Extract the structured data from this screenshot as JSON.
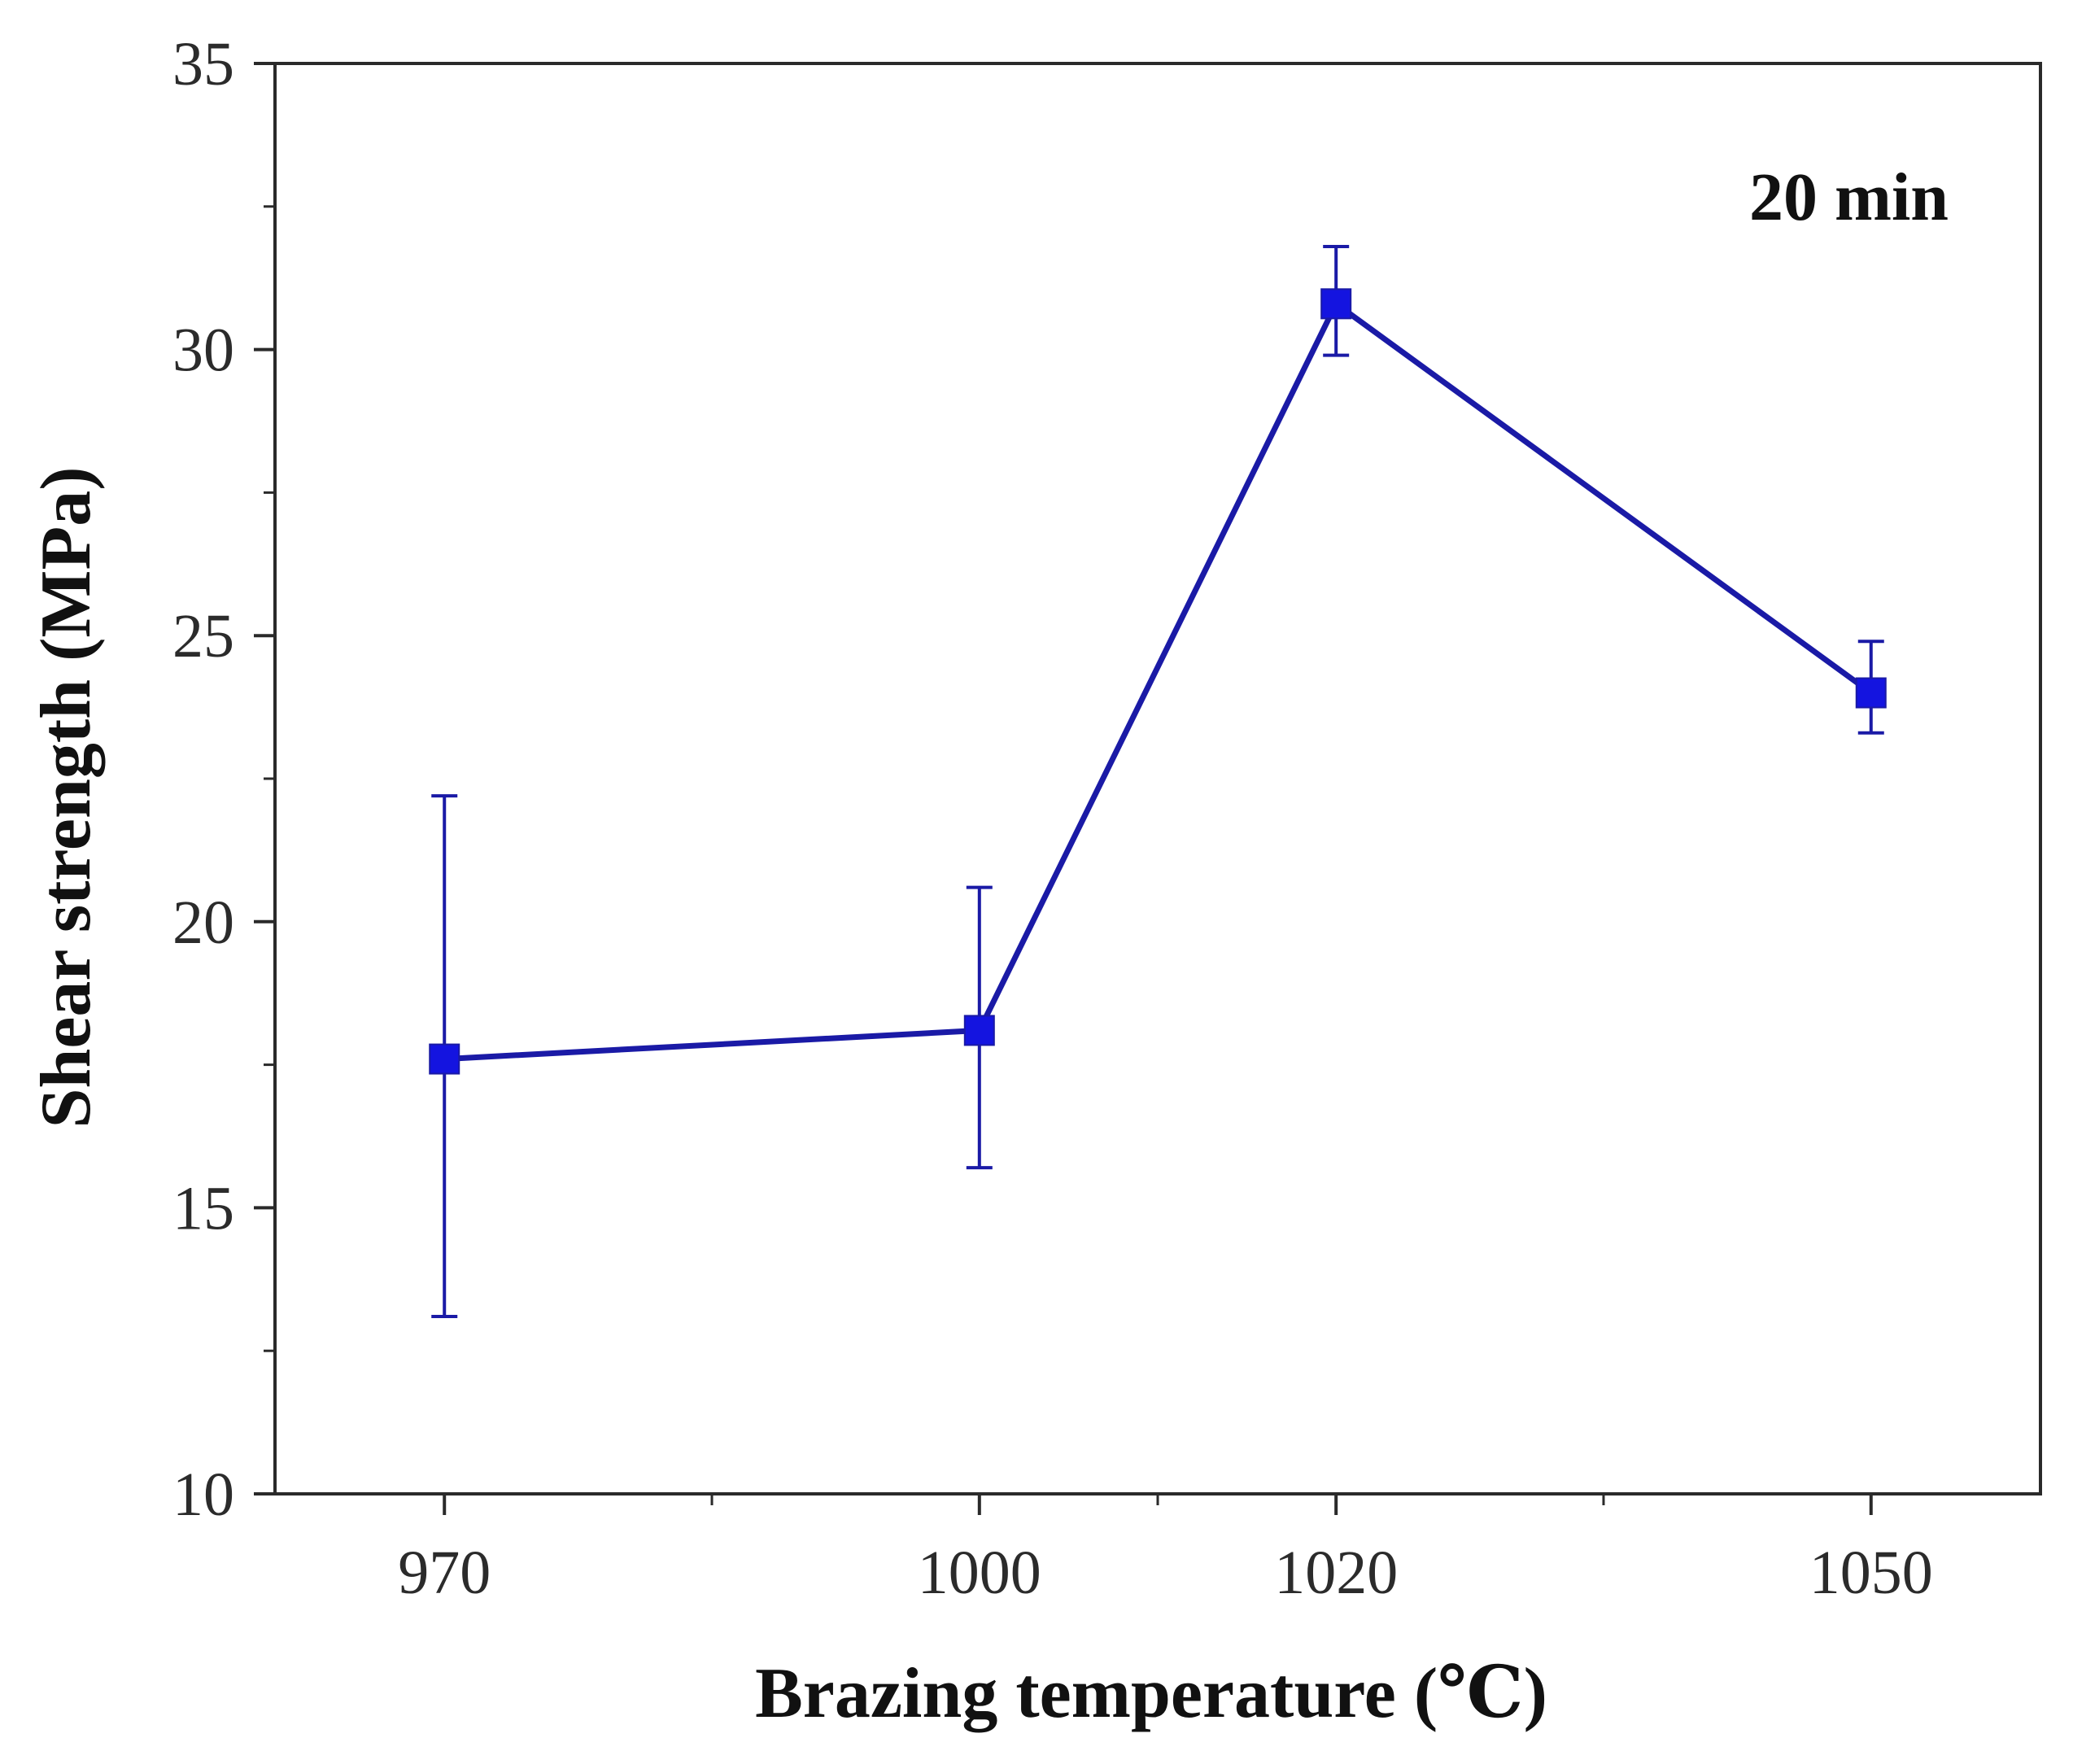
{
  "chart_data": {
    "type": "line",
    "title": "",
    "xlabel": "Brazing temperature (℃)",
    "ylabel": "Shear strength (MPa)",
    "annotation": "20 min",
    "x": [
      970,
      1000,
      1020,
      1050
    ],
    "xticks": [
      970,
      1000,
      1020,
      1050
    ],
    "xlim": [
      960.5,
      1059.5
    ],
    "ylim": [
      10,
      35
    ],
    "yticks": [
      10,
      15,
      20,
      25,
      30,
      35
    ],
    "grid": false,
    "series": [
      {
        "name": "20 min",
        "values": [
          17.6,
          18.1,
          30.8,
          24.0
        ],
        "error_upper": [
          22.2,
          20.6,
          31.8,
          24.9
        ],
        "error_lower": [
          13.1,
          15.7,
          29.9,
          23.3
        ],
        "color": "#1a1aa6",
        "marker_color": "#1414e0"
      }
    ]
  }
}
